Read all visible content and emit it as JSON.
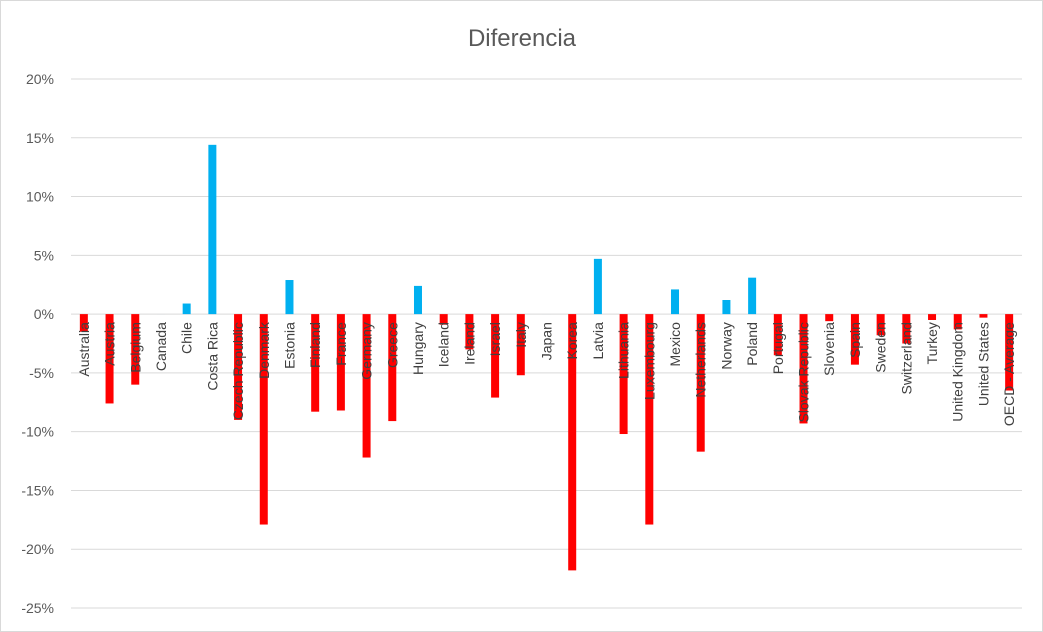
{
  "chart_data": {
    "type": "bar",
    "title": "Diferencia",
    "xlabel": "",
    "ylabel": "",
    "ylim": [
      -25,
      20
    ],
    "yticks": [
      20,
      15,
      10,
      5,
      0,
      -5,
      -10,
      -15,
      -20,
      -25
    ],
    "ytick_labels": [
      "20%",
      "15%",
      "10%",
      "5%",
      "0%",
      "-5%",
      "-10%",
      "-15%",
      "-20%",
      "-25%"
    ],
    "grid": true,
    "legend": "none",
    "colors": {
      "positive": "#00b0f0",
      "negative": "#ff0000",
      "grid": "#d9d9d9"
    },
    "categories": [
      "Australia",
      "Austria",
      "Belgium",
      "Canada",
      "Chile",
      "Costa Rica",
      "Czech Republic",
      "Denmark",
      "Estonia",
      "Finland",
      "France",
      "Germany",
      "Greece",
      "Hungary",
      "Iceland",
      "Ireland",
      "Israel",
      "Italy",
      "Japan",
      "Korea",
      "Latvia",
      "Lithuania",
      "Luxembourg",
      "Mexico",
      "Netherlands",
      "Norway",
      "Poland",
      "Portugal",
      "Slovak Republic",
      "Slovenia",
      "Spain",
      "Sweden",
      "Switzerland",
      "Turkey",
      "United Kingdom",
      "United States",
      "OECD - Average"
    ],
    "values": [
      -1.5,
      -7.6,
      -6.0,
      0,
      0.9,
      14.4,
      -9.0,
      -17.9,
      2.9,
      -8.3,
      -8.2,
      -12.2,
      -9.1,
      2.4,
      -0.9,
      -3.0,
      -7.1,
      -5.2,
      0,
      -21.8,
      4.7,
      -10.2,
      -17.9,
      2.1,
      -11.7,
      1.2,
      3.1,
      -3.5,
      -9.3,
      -0.6,
      -4.3,
      -1.8,
      -2.5,
      -0.5,
      -1.3,
      -0.3,
      -6.5
    ]
  }
}
